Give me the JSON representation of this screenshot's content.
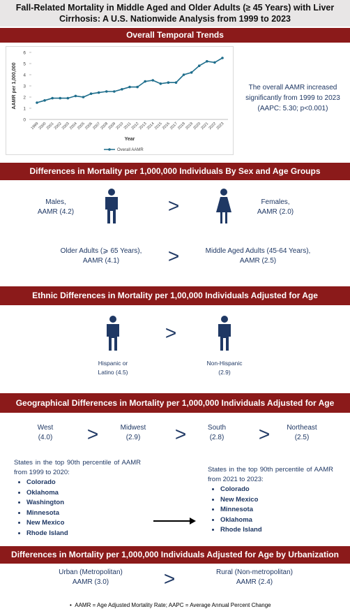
{
  "title": "Fall-Related Mortality in Middle Aged and Older Adults (≥ 45 Years) with Liver Cirrhosis: A U.S. Nationwide Analysis from 1999 to 2023",
  "symbols": {
    "greater": ">"
  },
  "temporal": {
    "header": "Overall Temporal Trends",
    "note": "The overall AAMR increased significantly from 1999 to 2023 (AAPC: 5.30; p<0.001)"
  },
  "chart_data": {
    "type": "line",
    "x_label": "Year",
    "y_label": "AAMR per 1,000,000",
    "categories": [
      "1999",
      "2000",
      "2001",
      "2002",
      "2003",
      "2004",
      "2005",
      "2006",
      "2007",
      "2008",
      "2009",
      "2010",
      "2011",
      "2012",
      "2013",
      "2014",
      "2015",
      "2016",
      "2017",
      "2018",
      "2019",
      "2020",
      "2021",
      "2022",
      "2023"
    ],
    "series": [
      {
        "name": "Overall AAMR",
        "color": "#1f6e8c",
        "values": [
          1.5,
          1.7,
          1.9,
          1.9,
          1.9,
          2.1,
          2.0,
          2.3,
          2.4,
          2.5,
          2.5,
          2.7,
          2.9,
          2.9,
          3.4,
          3.5,
          3.2,
          3.3,
          3.3,
          4.0,
          4.2,
          4.8,
          5.2,
          5.1,
          5.5
        ]
      }
    ],
    "ylim": [
      0,
      6
    ],
    "yticks": [
      0,
      1,
      2,
      3,
      4,
      5,
      6
    ],
    "legend": "bottom"
  },
  "sex_age": {
    "header": "Differences in Mortality per 1,000,000 Individuals By Sex and Age Groups",
    "males": [
      "Males,",
      "AAMR (4.2)"
    ],
    "females": [
      "Females,",
      "AAMR (2.0)"
    ],
    "older": [
      "Older Adults (⩾ 65 Years),",
      "AAMR (4.1)"
    ],
    "middle": [
      "Middle Aged Adults (45-64 Years),",
      "AAMR (2.5)"
    ]
  },
  "ethnic": {
    "header": "Ethnic Differences in Mortality per 1,00,000 Individuals Adjusted for Age",
    "hispanic": [
      "Hispanic or",
      "Latino (4.5)"
    ],
    "non_hispanic": [
      "Non-Hispanic",
      "(2.9)"
    ]
  },
  "geo": {
    "header": "Geographical Differences in Mortality per 1,000,000 Individuals Adjusted for Age",
    "regions": [
      [
        "West",
        "(4.0)"
      ],
      [
        "Midwest",
        "(2.9)"
      ],
      [
        "South",
        "(2.8)"
      ],
      [
        "Northeast",
        "(2.5)"
      ]
    ],
    "list1_head": "States in the top 90th percentile of AAMR from 1999 to 2020:",
    "list1": [
      "Colorado",
      "Oklahoma",
      "Washington",
      "Minnesota",
      "New Mexico",
      "Rhode Island"
    ],
    "list2_head": "States in the top 90th percentile of AAMR from 2021 to 2023:",
    "list2": [
      "Colorado",
      "New Mexico",
      "Minnesota",
      "Oklahoma",
      "Rhode Island"
    ]
  },
  "urban": {
    "header": "Differences in Mortality per 1,000,000 Individuals Adjusted for Age by Urbanization Status",
    "urban": [
      "Urban (Metropolitan)",
      "AAMR (3.0)"
    ],
    "rural": [
      "Rural (Non-metropolitan)",
      "AAMR (2.4)"
    ]
  },
  "footnote": "AAMR = Age Adjusted Mortality Rate; AAPC = Average Annual Percent Change"
}
